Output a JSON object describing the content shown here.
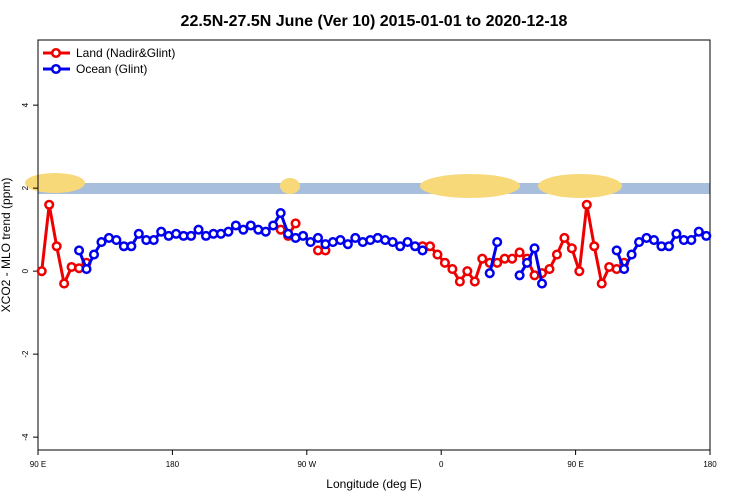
{
  "chart_data": {
    "type": "line",
    "title": "22.5N-27.5N June (Ver 10)   2015-01-01 to 2020-12-18",
    "x_label": "Longitude (deg E)",
    "y_label": "XCO2 - MLO trend (ppm)",
    "x": [
      92.5,
      97.5,
      102.5,
      107.5,
      112.5,
      117.5,
      122.5,
      127.5,
      132.5,
      137.5,
      142.5,
      147.5,
      152.5,
      157.5,
      162.5,
      167.5,
      172.5,
      177.5,
      182.5,
      187.5,
      192.5,
      197.5,
      202.5,
      207.5,
      212.5,
      217.5,
      222.5,
      227.5,
      232.5,
      237.5,
      242.5,
      247.5,
      252.5,
      257.5,
      262.5,
      267.5,
      272.5,
      277.5,
      282.5,
      287.5,
      292.5,
      297.5,
      302.5,
      307.5,
      312.5,
      317.5,
      322.5,
      327.5,
      332.5,
      337.5,
      342.5,
      347.5,
      352.5,
      357.5,
      362.5,
      367.5,
      372.5,
      377.5,
      382.5,
      387.5,
      392.5,
      397.5,
      402.5,
      407.5,
      412.5,
      417.5,
      422.5,
      427.5,
      432.5,
      437.5,
      442.5,
      447.5,
      452.5,
      457.5,
      462.5,
      467.5,
      472.5,
      477.5,
      482.5,
      487.5,
      492.5,
      497.5,
      502.5,
      507.5,
      512.5,
      517.5,
      522.5,
      527.5,
      532.5,
      537.5
    ],
    "series": [
      {
        "name": "Land (Nadir&Glint)",
        "color": "#ee0000",
        "values": [
          0,
          1.6,
          0.6,
          -0.3,
          0.1,
          0.07,
          0.2,
          null,
          null,
          null,
          null,
          null,
          null,
          null,
          null,
          null,
          null,
          null,
          null,
          null,
          null,
          null,
          null,
          null,
          null,
          null,
          null,
          null,
          null,
          null,
          null,
          null,
          1.0,
          0.85,
          1.15,
          null,
          null,
          0.5,
          0.5,
          null,
          null,
          null,
          null,
          null,
          null,
          null,
          null,
          null,
          null,
          null,
          null,
          0.6,
          0.6,
          0.4,
          0.2,
          0.05,
          -0.25,
          0.0,
          -0.25,
          0.3,
          0.2,
          0.2,
          0.3,
          0.3,
          0.45,
          0.3,
          -0.1,
          -0.05,
          0.05,
          0.4,
          0.8,
          0.55,
          0.0,
          1.6,
          0.6,
          -0.3,
          0.1,
          0.05,
          0.2,
          null,
          null,
          null,
          null,
          null,
          null,
          null,
          null,
          null,
          null,
          null
        ]
      },
      {
        "name": "Ocean (Glint)",
        "color": "#0000ee",
        "values": [
          null,
          null,
          null,
          null,
          null,
          0.5,
          0.05,
          0.4,
          0.7,
          0.8,
          0.75,
          0.6,
          0.6,
          0.9,
          0.75,
          0.75,
          0.95,
          0.85,
          0.9,
          0.85,
          0.85,
          1.0,
          0.85,
          0.9,
          0.9,
          0.95,
          1.1,
          1.0,
          1.1,
          1.0,
          0.95,
          1.1,
          1.4,
          0.9,
          0.8,
          0.85,
          0.7,
          0.8,
          0.65,
          0.7,
          0.75,
          0.65,
          0.8,
          0.7,
          0.75,
          0.8,
          0.75,
          0.7,
          0.6,
          0.7,
          0.6,
          0.5,
          null,
          null,
          null,
          null,
          null,
          null,
          null,
          null,
          -0.05,
          0.7,
          null,
          null,
          -0.1,
          0.2,
          0.55,
          -0.3,
          null,
          null,
          null,
          null,
          null,
          null,
          null,
          null,
          null,
          0.5,
          0.05,
          0.4,
          0.7,
          0.8,
          0.75,
          0.6,
          0.6,
          0.9,
          0.75,
          0.75,
          0.95,
          0.85
        ]
      }
    ],
    "xlim": [
      90,
      540
    ],
    "xticks": [
      {
        "value": 90,
        "label": "90 E"
      },
      180,
      {
        "value": 270,
        "label": "90 W"
      },
      {
        "value": 360,
        "label": "0"
      },
      {
        "value": 450,
        "label": "90 E"
      },
      {
        "value": 540,
        "label": "180"
      }
    ],
    "ylim": [
      -4.31,
      5.57
    ],
    "yticks": [
      -4,
      -2,
      0,
      2,
      4
    ],
    "legend": "top-left"
  }
}
